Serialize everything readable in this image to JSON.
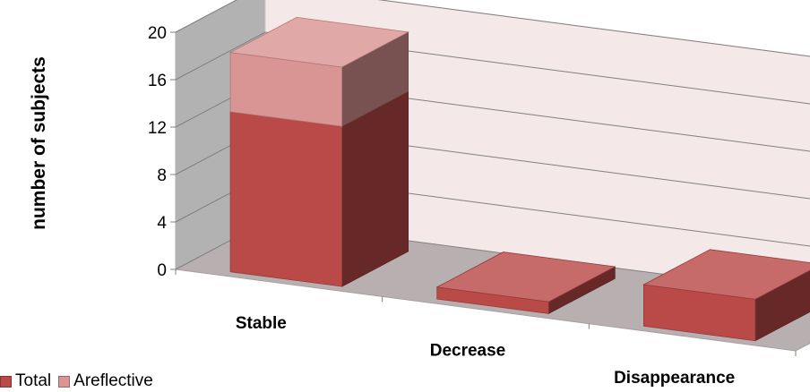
{
  "chart_data": {
    "type": "bar",
    "stacked": true,
    "three_d": true,
    "categories": [
      "Stable",
      "Decrease",
      "Disappearance"
    ],
    "series": [
      {
        "name": "Total",
        "values": [
          13.5,
          1,
          3.5
        ],
        "color": "#b94a48"
      },
      {
        "name": "Areflective",
        "values": [
          5,
          0,
          0
        ],
        "color": "#d99593"
      }
    ],
    "ylabel": "number of subjects",
    "xlabel": "",
    "ylim": [
      0,
      20
    ],
    "yticks": [
      "0",
      "4",
      "8",
      "12",
      "16",
      "20"
    ],
    "grid": true,
    "legend_position": "bottom-left"
  },
  "colors": {
    "back_wall": "#f5e8e8",
    "side_wall": "#b2b2b2",
    "floor": "#b8b0b0",
    "gridline": "#808080"
  }
}
